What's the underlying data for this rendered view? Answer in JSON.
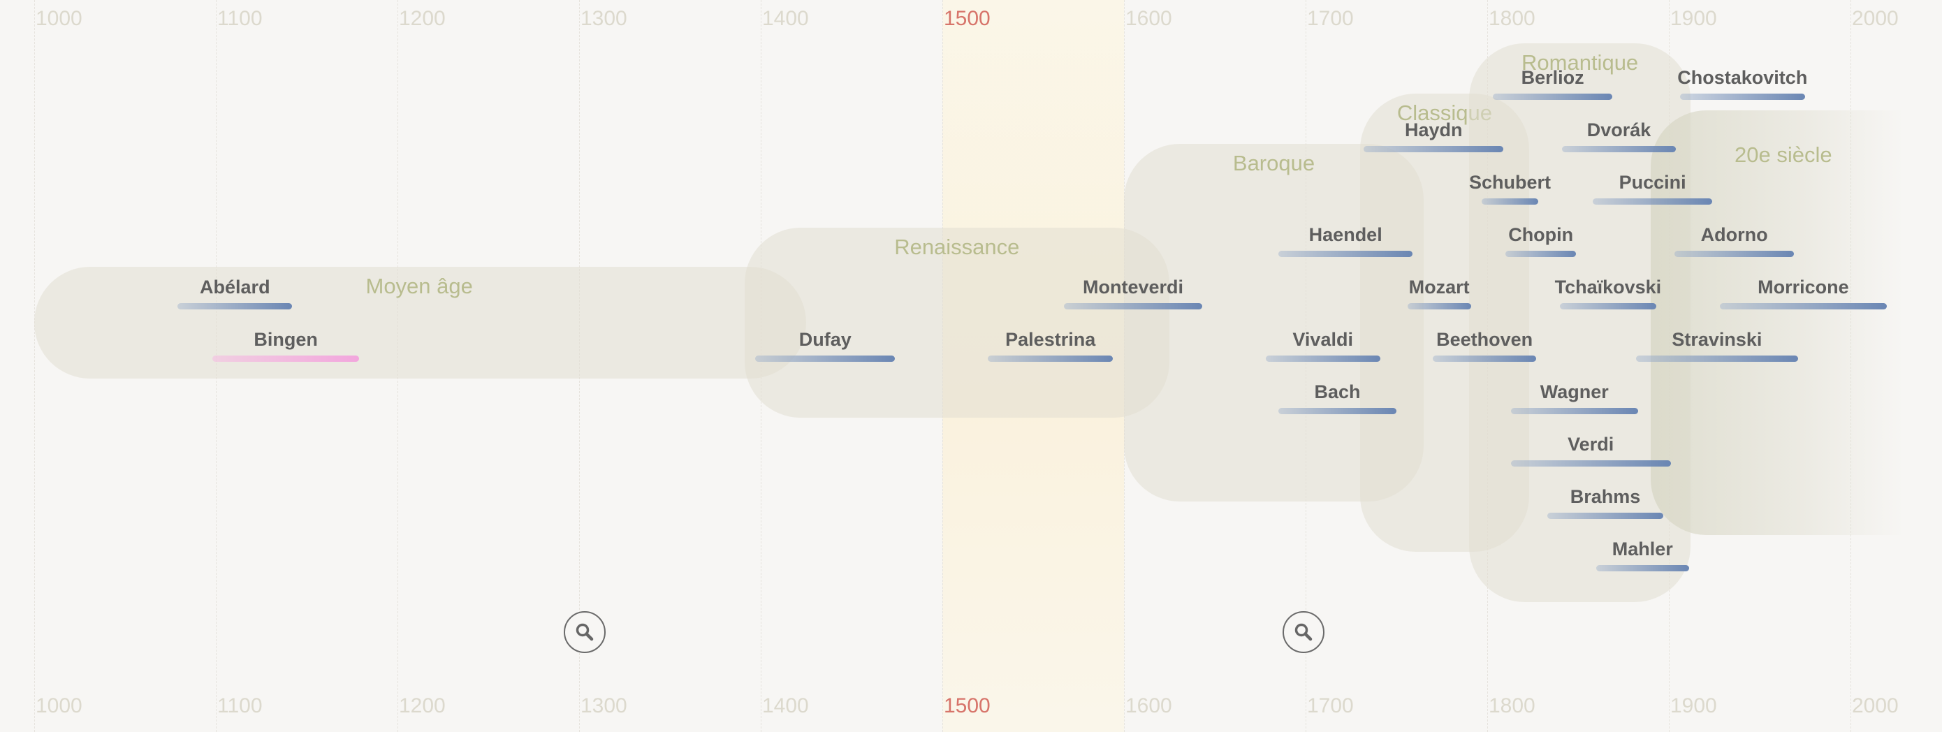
{
  "axis": {
    "years": [
      "1000",
      "1100",
      "1200",
      "1300",
      "1400",
      "1500",
      "1600",
      "1700",
      "1800",
      "1900",
      "2000"
    ],
    "highlighted_year": "1500"
  },
  "periods": [
    {
      "id": "moyen-age",
      "label": "Moyen âge",
      "start": 1000,
      "end": 1425
    },
    {
      "id": "renaissance",
      "label": "Renaissance",
      "start": 1391,
      "end": 1625
    },
    {
      "id": "baroque",
      "label": "Baroque",
      "start": 1600,
      "end": 1765
    },
    {
      "id": "classique",
      "label": "Classique",
      "start": 1730,
      "end": 1823
    },
    {
      "id": "romantique",
      "label": "Romantique",
      "start": 1790,
      "end": 1912
    },
    {
      "id": "20e-siecle",
      "label": "20e siècle",
      "start": 1890,
      "end": 2030
    }
  ],
  "composers": [
    {
      "name": "Abélard",
      "birth": 1079,
      "death": 1142,
      "row": 1,
      "color": "blue"
    },
    {
      "name": "Bingen",
      "birth": 1098,
      "death": 1179,
      "row": 2,
      "color": "pink"
    },
    {
      "name": "Dufay",
      "birth": 1397,
      "death": 1474,
      "row": 2,
      "color": "blue"
    },
    {
      "name": "Palestrina",
      "birth": 1525,
      "death": 1594,
      "row": 2,
      "color": "blue"
    },
    {
      "name": "Monteverdi",
      "birth": 1567,
      "death": 1643,
      "row": 1,
      "color": "blue"
    },
    {
      "name": "Haendel",
      "birth": 1685,
      "death": 1759,
      "row": 0,
      "color": "blue"
    },
    {
      "name": "Vivaldi",
      "birth": 1678,
      "death": 1741,
      "row": 2,
      "color": "blue"
    },
    {
      "name": "Bach",
      "birth": 1685,
      "death": 1750,
      "row": 3,
      "color": "blue"
    },
    {
      "name": "Haydn",
      "birth": 1732,
      "death": 1809,
      "row": -2,
      "color": "blue"
    },
    {
      "name": "Mozart",
      "birth": 1756,
      "death": 1791,
      "row": 1,
      "color": "blue"
    },
    {
      "name": "Beethoven",
      "birth": 1770,
      "death": 1827,
      "row": 2,
      "color": "blue"
    },
    {
      "name": "Schubert",
      "birth": 1797,
      "death": 1828,
      "row": -1,
      "color": "blue"
    },
    {
      "name": "Berlioz",
      "birth": 1803,
      "death": 1869,
      "row": -3,
      "color": "blue"
    },
    {
      "name": "Chopin",
      "birth": 1810,
      "death": 1849,
      "row": 0,
      "color": "blue"
    },
    {
      "name": "Wagner",
      "birth": 1813,
      "death": 1883,
      "row": 3,
      "color": "blue"
    },
    {
      "name": "Verdi",
      "birth": 1813,
      "death": 1901,
      "row": 4,
      "color": "blue"
    },
    {
      "name": "Brahms",
      "birth": 1833,
      "death": 1897,
      "row": 5,
      "color": "blue"
    },
    {
      "name": "Tchaïkovski",
      "birth": 1840,
      "death": 1893,
      "row": 1,
      "color": "blue"
    },
    {
      "name": "Dvorák",
      "birth": 1841,
      "death": 1904,
      "row": -2,
      "color": "blue"
    },
    {
      "name": "Puccini",
      "birth": 1858,
      "death": 1924,
      "row": -1,
      "color": "blue"
    },
    {
      "name": "Mahler",
      "birth": 1860,
      "death": 1911,
      "row": 6,
      "color": "blue"
    },
    {
      "name": "Stravinski",
      "birth": 1882,
      "death": 1971,
      "row": 2,
      "color": "blue"
    },
    {
      "name": "Chostakovitch",
      "birth": 1906,
      "death": 1975,
      "row": -3,
      "color": "blue"
    },
    {
      "name": "Adorno",
      "birth": 1903,
      "death": 1969,
      "row": 0,
      "color": "blue"
    },
    {
      "name": "Morricone",
      "birth": 1928,
      "death": 2020,
      "row": 1,
      "color": "blue"
    }
  ],
  "zoom_controls": [
    {
      "id": "zoom-1",
      "icon": "search-icon",
      "year": 1303
    },
    {
      "id": "zoom-2",
      "icon": "search-icon",
      "year": 1699
    }
  ],
  "colors": {
    "highlight": "#d7746a",
    "period_label": "#b8bc8e",
    "lifebar": "#6a86b3",
    "lifebar_female": "#f2a6dd"
  }
}
